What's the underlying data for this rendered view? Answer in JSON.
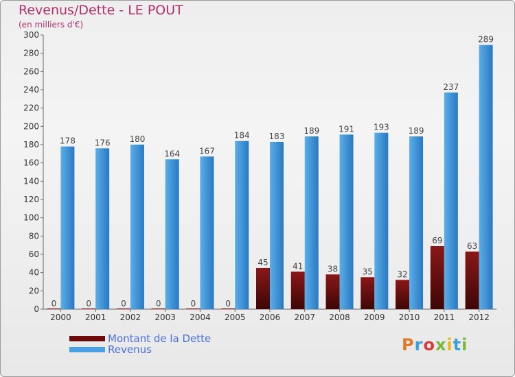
{
  "colors": {
    "title": "#b0306a",
    "dette_top": "#8a1818",
    "dette_bottom": "#3e0606",
    "revenus_top": "#5aaee8",
    "revenus_bottom": "#2a78c2",
    "legend_text": "#4a6fd6"
  },
  "legend": [
    {
      "label": "Montant de la Dette",
      "color": "#6a0c0c"
    },
    {
      "label": "Revenus",
      "color": "#4aa0e0"
    }
  ],
  "logo": {
    "text": "Proxiti",
    "colors": [
      "#e07a28",
      "#3aa0d8",
      "#d63c3c",
      "#7ab83a",
      "#e8b81c",
      "#3aa0d8",
      "#7ab83a"
    ]
  },
  "chart_data": {
    "type": "bar",
    "title": "Revenus/Dette - LE POUT",
    "subtitle": "(en milliers d'€)",
    "xlabel": "",
    "ylabel": "",
    "categories": [
      "2000",
      "2001",
      "2002",
      "2003",
      "2004",
      "2005",
      "2006",
      "2007",
      "2008",
      "2009",
      "2010",
      "2011",
      "2012"
    ],
    "series": [
      {
        "name": "Montant de la Dette",
        "values": [
          0,
          0,
          0,
          0,
          0,
          0,
          45,
          41,
          38,
          35,
          32,
          69,
          63
        ]
      },
      {
        "name": "Revenus",
        "values": [
          178,
          176,
          180,
          164,
          167,
          184,
          183,
          189,
          191,
          193,
          189,
          237,
          289
        ]
      }
    ],
    "ylim": [
      0,
      300
    ],
    "yticks": [
      0,
      20,
      40,
      60,
      80,
      100,
      120,
      140,
      160,
      180,
      200,
      220,
      240,
      260,
      280,
      300
    ],
    "grid": false,
    "legend_position": "bottom-left",
    "data_labels": true
  }
}
